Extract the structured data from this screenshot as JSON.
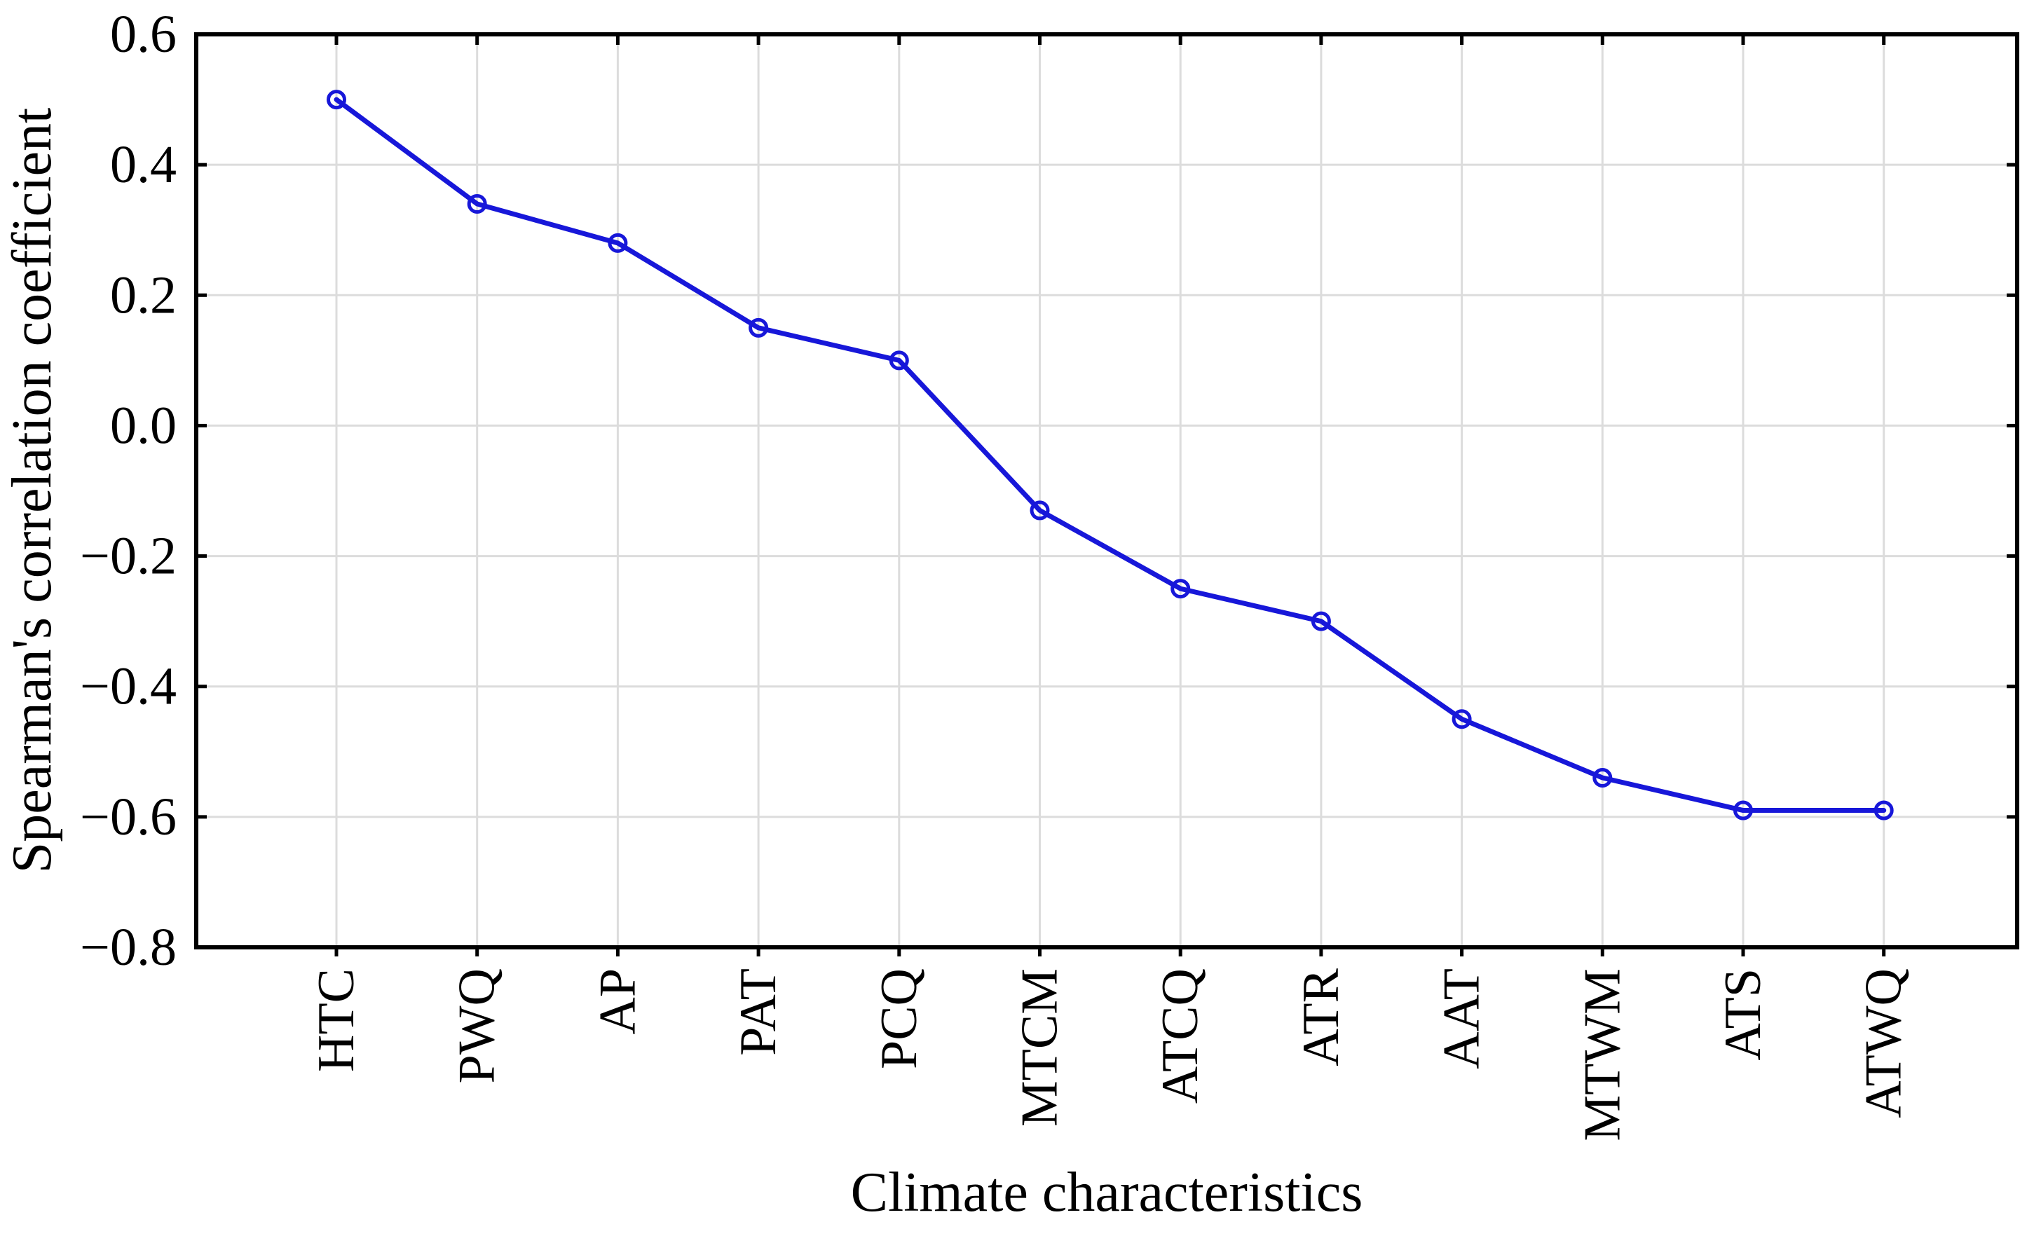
{
  "figure": {
    "background": "#ffffff"
  },
  "chart_data": {
    "type": "line",
    "title": "",
    "xlabel": "Climate characteristics",
    "ylabel": "Spearman's correlation coefficient",
    "categories": [
      "HTC",
      "PWQ",
      "AP",
      "PAT",
      "PCQ",
      "MTCM",
      "ATCQ",
      "ATR",
      "AAT",
      "MTWM",
      "ATS",
      "ATWQ"
    ],
    "series": [
      {
        "name": "Spearman's correlation coefficient",
        "values": [
          0.5,
          0.34,
          0.28,
          0.15,
          0.1,
          -0.13,
          -0.25,
          -0.3,
          -0.45,
          -0.54,
          -0.59,
          -0.59
        ]
      }
    ],
    "ylim": [
      -0.8,
      0.6
    ],
    "yticks": [
      0.6,
      0.4,
      0.2,
      0.0,
      -0.2,
      -0.4,
      -0.6,
      -0.8
    ],
    "ytick_labels": [
      "0.6",
      "0.4",
      "0.2",
      "0.0",
      "−0.2",
      "−0.4",
      "−0.6",
      "−0.8"
    ],
    "xtick_rotation_deg": -90,
    "grid": true,
    "legend_position": "none",
    "marker": "open-circle",
    "colors": {
      "line": "#1717d9",
      "marker_stroke": "#1717d9",
      "grid": "#dcdcdc",
      "axis": "#000000",
      "text": "#000000",
      "background": "#ffffff"
    }
  }
}
